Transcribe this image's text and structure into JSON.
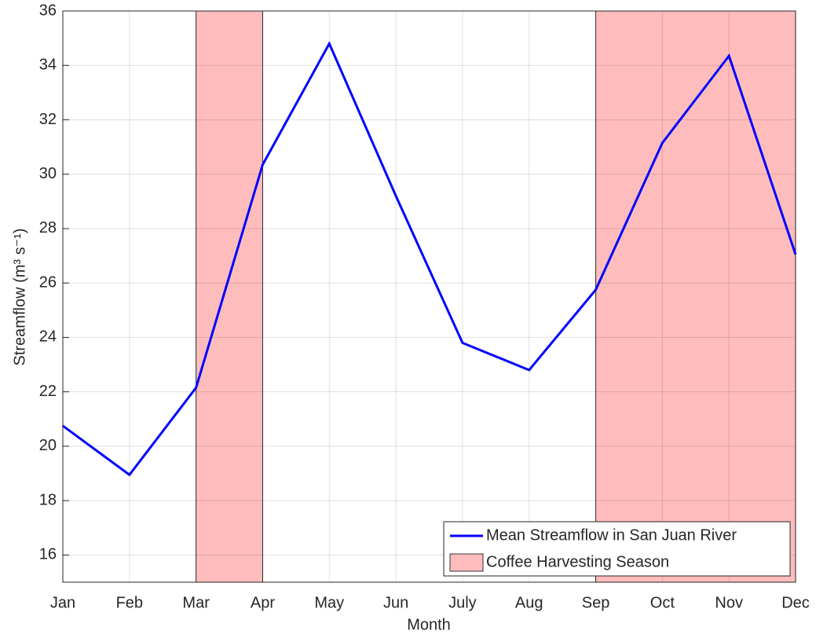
{
  "chart_data": {
    "type": "line",
    "xlabel": "Month",
    "ylabel": "Streamflow (m³ s⁻¹)",
    "categories": [
      "Jan",
      "Feb",
      "Mar",
      "Apr",
      "May",
      "Jun",
      "July",
      "Aug",
      "Sep",
      "Oct",
      "Nov",
      "Dec"
    ],
    "series": [
      {
        "name": "Mean Streamflow in San Juan River",
        "color": "#0000ff",
        "values": [
          20.75,
          18.95,
          22.15,
          30.35,
          34.8,
          29.2,
          23.8,
          22.8,
          25.75,
          31.15,
          34.35,
          27.05
        ]
      }
    ],
    "spans": {
      "name": "Coffee Harvesting Season",
      "color": "#ffbcbc",
      "ranges": [
        [
          "Mar",
          "Apr"
        ],
        [
          "Sep",
          "Dec"
        ]
      ]
    },
    "ylim": [
      15,
      36
    ],
    "yticks": [
      16,
      18,
      20,
      22,
      24,
      26,
      28,
      30,
      32,
      34,
      36
    ],
    "grid": true,
    "legend": "lower right"
  }
}
